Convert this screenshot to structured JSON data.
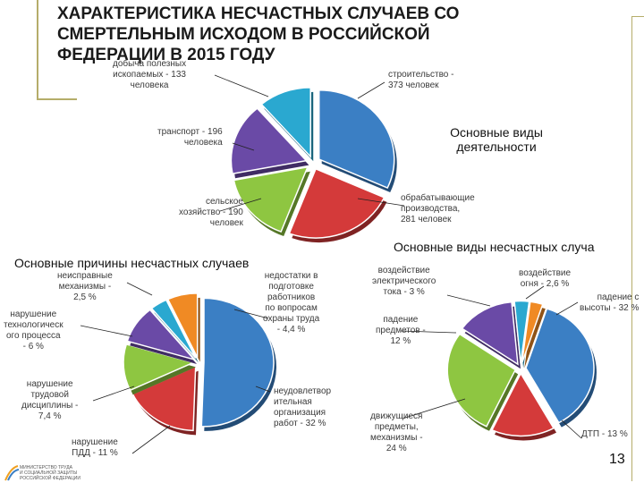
{
  "page": {
    "title": "ХАРАКТЕРИСТИКА НЕСЧАСТНЫХ СЛУЧАЕВ СО СМЕРТЕЛЬНЫМ ИСХОДОМ В РОССИЙСКОЙ ФЕДЕРАЦИИ В 2015 ГОДУ",
    "page_number": "13",
    "logo_text": "МИНИСТЕРСТВО ТРУДА\nИ СОЦИАЛЬНОЙ ЗАЩИТЫ\nРОССИЙСКОЙ ФЕДЕРАЦИИ"
  },
  "colors": {
    "blue": "#3b7fc4",
    "red": "#d43a3a",
    "green": "#8ec641",
    "purple": "#6a4aa6",
    "cyan": "#2aa8d0",
    "orange": "#f08a24",
    "frame": "#b5ad6a"
  },
  "chart_data": [
    {
      "type": "pie",
      "title": "Основные виды деятельности",
      "slices": [
        {
          "label": "строительство -\n373 человек",
          "value": 373,
          "color": "#3b7fc4"
        },
        {
          "label": "обрабатывающие\nпроизводства,\n281 человек",
          "value": 281,
          "color": "#d43a3a"
        },
        {
          "label": "сельское\nхозяйство - 190\nчеловек",
          "value": 190,
          "color": "#8ec641"
        },
        {
          "label": "транспорт - 196\nчеловека",
          "value": 196,
          "color": "#6a4aa6"
        },
        {
          "label": "добыча полезных\nископаемых - 133\nчеловека",
          "value": 133,
          "color": "#2aa8d0"
        }
      ]
    },
    {
      "type": "pie",
      "title": "Основные причины несчастных случаев",
      "slices": [
        {
          "label": "неудовлетвор\nительная\nорганизация\nработ - 32 %",
          "value": 32,
          "color": "#3b7fc4"
        },
        {
          "label": "нарушение\nПДД - 11 %",
          "value": 11,
          "color": "#d43a3a"
        },
        {
          "label": "нарушение\nтрудовой\nдисциплины -\n7,4 %",
          "value": 7.4,
          "color": "#8ec641"
        },
        {
          "label": "нарушение\nтехнологическ\nого процесса\n- 6 %",
          "value": 6,
          "color": "#6a4aa6"
        },
        {
          "label": "неисправные\nмеханизмы -\n2,5 %",
          "value": 2.5,
          "color": "#2aa8d0"
        },
        {
          "label": "недостатки в\nподготовке\nработников\nпо вопросам\nохраны труда\n- 4,4 %",
          "value": 4.4,
          "color": "#f08a24"
        }
      ]
    },
    {
      "type": "pie",
      "title": "Основные виды несчастных случа",
      "slices": [
        {
          "label": "падение с\nвысоты - 32 %",
          "value": 32,
          "color": "#3b7fc4"
        },
        {
          "label": "ДТП - 13 %",
          "value": 13,
          "color": "#d43a3a"
        },
        {
          "label": "движущиеся\nпредметы,\nмеханизмы -\n24 %",
          "value": 24,
          "color": "#8ec641"
        },
        {
          "label": "падение\nпредметов -\n12 %",
          "value": 12,
          "color": "#6a4aa6"
        },
        {
          "label": "воздействие\nэлектрического\nтока - 3 %",
          "value": 3,
          "color": "#2aa8d0"
        },
        {
          "label": "воздействие\nогня - 2,6 %",
          "value": 2.6,
          "color": "#f08a24"
        }
      ]
    }
  ]
}
